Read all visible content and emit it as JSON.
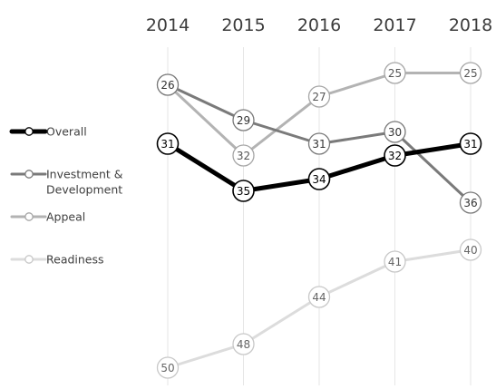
{
  "chart_data": {
    "type": "line",
    "title": "",
    "x": [
      "2014",
      "2015",
      "2016",
      "2017",
      "2018"
    ],
    "ylim": [
      24,
      51
    ],
    "y_inverted": true,
    "grid": "vertical",
    "legend_position": "left",
    "series": [
      {
        "name": "Overall",
        "values": [
          31,
          35,
          34,
          32,
          31
        ],
        "color": "#000000",
        "marker_color": "#000000",
        "label_color": "#000000",
        "width": "thick"
      },
      {
        "name": "Investment & Development",
        "values": [
          26,
          29,
          31,
          30,
          36
        ],
        "color": "#7a7a7a",
        "marker_color": "#7a7a7a",
        "label_color": "#333333",
        "width": "medium"
      },
      {
        "name": "Appeal",
        "values": [
          26,
          32,
          27,
          25,
          25
        ],
        "color": "#b3b3b3",
        "marker_color": "#a6a6a6",
        "label_color": "#555555",
        "width": "medium"
      },
      {
        "name": "Readiness",
        "values": [
          50,
          48,
          44,
          41,
          40
        ],
        "color": "#dcdcdc",
        "marker_color": "#c8c8c8",
        "label_color": "#666666",
        "width": "medium"
      }
    ],
    "legend": [
      {
        "lines": [
          "Overall"
        ]
      },
      {
        "lines": [
          "Investment &",
          "Development"
        ]
      },
      {
        "lines": [
          "Appeal"
        ]
      },
      {
        "lines": [
          "Readiness"
        ]
      }
    ]
  }
}
